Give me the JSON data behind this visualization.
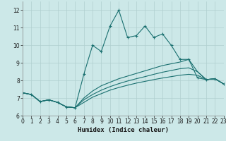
{
  "xlabel": "Humidex (Indice chaleur)",
  "xlim": [
    0,
    23
  ],
  "ylim": [
    6,
    12.5
  ],
  "yticks": [
    6,
    7,
    8,
    9,
    10,
    11,
    12
  ],
  "xticks": [
    0,
    1,
    2,
    3,
    4,
    5,
    6,
    7,
    8,
    9,
    10,
    11,
    12,
    13,
    14,
    15,
    16,
    17,
    18,
    19,
    20,
    21,
    22,
    23
  ],
  "background_color": "#cce8e8",
  "grid_color": "#b0cfcf",
  "line_color": "#1a7070",
  "lines": [
    {
      "x": [
        0,
        1,
        2,
        3,
        4,
        5,
        6,
        7,
        8,
        9,
        10,
        11,
        12,
        13,
        14,
        15,
        16,
        17,
        18,
        19,
        20,
        21,
        22,
        23
      ],
      "y": [
        7.3,
        7.2,
        6.8,
        6.9,
        6.75,
        6.5,
        6.45,
        8.35,
        10.0,
        9.65,
        11.1,
        12.0,
        10.45,
        10.55,
        11.1,
        10.45,
        10.65,
        10.0,
        9.2,
        9.2,
        8.15,
        8.05,
        8.1,
        7.8
      ],
      "marker": true
    },
    {
      "x": [
        0,
        1,
        2,
        3,
        4,
        5,
        6,
        7,
        8,
        9,
        10,
        11,
        12,
        13,
        14,
        15,
        16,
        17,
        18,
        19,
        20,
        21,
        22,
        23
      ],
      "y": [
        7.3,
        7.2,
        6.8,
        6.9,
        6.75,
        6.5,
        6.45,
        7.0,
        7.4,
        7.7,
        7.9,
        8.1,
        8.25,
        8.4,
        8.55,
        8.7,
        8.85,
        8.95,
        9.05,
        9.2,
        8.5,
        8.05,
        8.1,
        7.8
      ],
      "marker": false
    },
    {
      "x": [
        0,
        1,
        2,
        3,
        4,
        5,
        6,
        7,
        8,
        9,
        10,
        11,
        12,
        13,
        14,
        15,
        16,
        17,
        18,
        19,
        20,
        21,
        22,
        23
      ],
      "y": [
        7.3,
        7.2,
        6.8,
        6.9,
        6.75,
        6.5,
        6.45,
        6.9,
        7.2,
        7.45,
        7.65,
        7.82,
        7.97,
        8.1,
        8.22,
        8.35,
        8.47,
        8.57,
        8.67,
        8.72,
        8.5,
        8.05,
        8.1,
        7.8
      ],
      "marker": false
    },
    {
      "x": [
        0,
        1,
        2,
        3,
        4,
        5,
        6,
        7,
        8,
        9,
        10,
        11,
        12,
        13,
        14,
        15,
        16,
        17,
        18,
        19,
        20,
        21,
        22,
        23
      ],
      "y": [
        7.3,
        7.2,
        6.8,
        6.9,
        6.75,
        6.5,
        6.45,
        6.75,
        7.05,
        7.25,
        7.45,
        7.6,
        7.73,
        7.85,
        7.95,
        8.05,
        8.14,
        8.22,
        8.3,
        8.35,
        8.3,
        8.05,
        8.1,
        7.8
      ],
      "marker": false
    }
  ]
}
